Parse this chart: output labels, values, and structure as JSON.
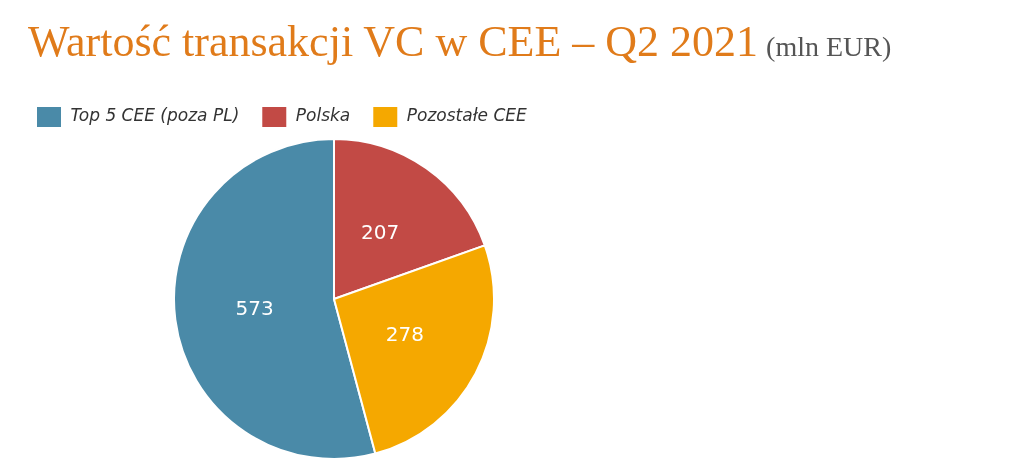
{
  "chart_data": {
    "type": "pie",
    "title": "Wartość transakcji VC w CEE – Q2 2021",
    "subtitle": "(mln EUR)",
    "categories": [
      "Top 5 CEE (poza PL)",
      "Polska",
      "Pozostałe CEE"
    ],
    "values": [
      573,
      207,
      278
    ],
    "colors": [
      "#4a8aa8",
      "#c24a45",
      "#f5a800"
    ],
    "legend": "top left",
    "data_labels": true
  }
}
